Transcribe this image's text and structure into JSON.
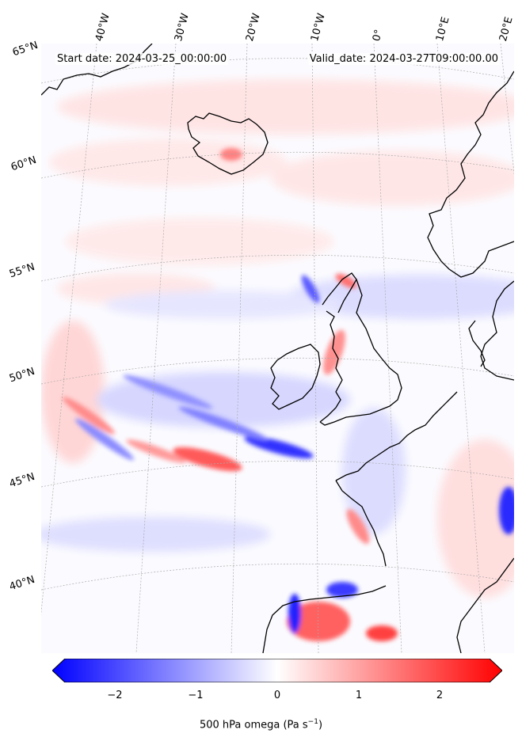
{
  "map": {
    "start_date": "Start date: 2024-03-25_00:00:00",
    "valid_date": "Valid_date: 2024-03-27T09:00:00.00",
    "lon_labels": [
      "40°W",
      "30°W",
      "20°W",
      "10°W",
      "0°",
      "10°E",
      "20°E"
    ],
    "lat_labels": [
      "65°N",
      "60°N",
      "55°N",
      "50°N",
      "45°N",
      "40°N"
    ]
  },
  "colorbar": {
    "label_text": "500 hPa omega (Pa s",
    "label_sup": "−1",
    "label_tail": ")",
    "ticks": [
      "−2",
      "−1",
      "0",
      "1",
      "2"
    ],
    "range": [
      -2.5,
      2.5
    ],
    "colormap": "bwr",
    "min_color": "#0000ff",
    "mid_color": "#ffffff",
    "max_color": "#ff0000"
  },
  "coastline_color": "#000000",
  "graticule_color": "#aaaaaa"
}
